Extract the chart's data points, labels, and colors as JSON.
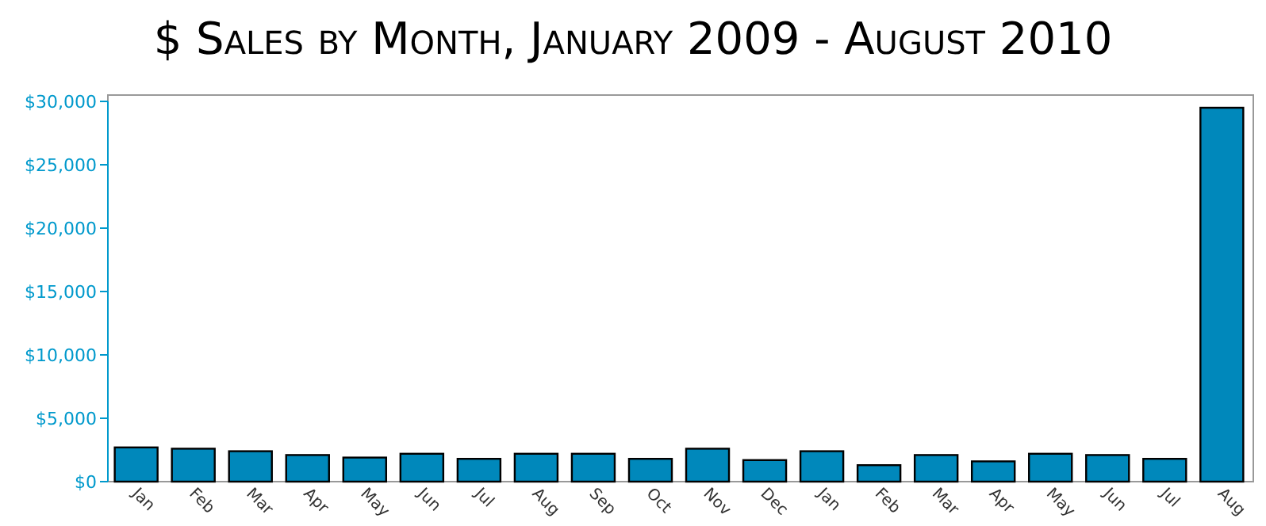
{
  "chart_data": {
    "type": "bar",
    "title": "$ Sales by Month, January 2009 - August 2010",
    "categories": [
      "Jan",
      "Feb",
      "Mar",
      "Apr",
      "May",
      "Jun",
      "Jul",
      "Aug",
      "Sep",
      "Oct",
      "Nov",
      "Dec",
      "Jan",
      "Feb",
      "Mar",
      "Apr",
      "May",
      "Jun",
      "Jul",
      "Aug"
    ],
    "values": [
      2700,
      2600,
      2400,
      2100,
      1900,
      2200,
      1800,
      2200,
      2200,
      1800,
      2600,
      1700,
      2400,
      1300,
      2100,
      1600,
      2200,
      2100,
      1800,
      29500
    ],
    "color": "#0088bb",
    "ylim": [
      0,
      30000
    ],
    "yticks": [
      {
        "value": 0,
        "label": "$0"
      },
      {
        "value": 5000,
        "label": "$5,000"
      },
      {
        "value": 10000,
        "label": "$10,000"
      },
      {
        "value": 15000,
        "label": "$15,000"
      },
      {
        "value": 20000,
        "label": "$20,000"
      },
      {
        "value": 25000,
        "label": "$25,000"
      },
      {
        "value": 30000,
        "label": "$30,000"
      }
    ],
    "grid": false
  }
}
